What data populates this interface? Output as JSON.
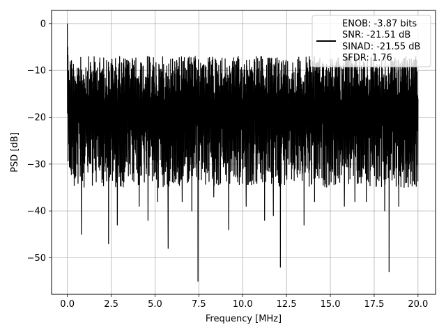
{
  "chart_data": {
    "type": "line",
    "title": "",
    "xlabel": "Frequency [MHz]",
    "ylabel": "PSD [dB]",
    "xlim": [
      -0.9,
      21.0
    ],
    "ylim": [
      -57.8,
      2.8
    ],
    "xticks": [
      0.0,
      2.5,
      5.0,
      7.5,
      10.0,
      12.5,
      15.0,
      17.5,
      20.0
    ],
    "xtick_labels": [
      "0.0",
      "2.5",
      "5.0",
      "7.5",
      "10.0",
      "12.5",
      "15.0",
      "17.5",
      "20.0"
    ],
    "yticks": [
      0,
      -10,
      -20,
      -30,
      -40,
      -50
    ],
    "ytick_labels": [
      "0",
      "−10",
      "−20",
      "−30",
      "−40",
      "−50"
    ],
    "grid": true,
    "legend_position": "top-right",
    "series_color": "#000000",
    "legend": [
      "ENOB: -3.87 bits",
      "SNR: -21.51 dB",
      "SINAD: -21.55 dB",
      "SFDR: 1.76"
    ],
    "series": [
      {
        "x": [
          0.0,
          0.02,
          0.05,
          0.1,
          0.15,
          0.2,
          0.3,
          0.4,
          0.55,
          0.6,
          0.8,
          2.35,
          2.85,
          4.1,
          4.6,
          5.15,
          5.75,
          6.55,
          7.1,
          7.45,
          8.35,
          9.2,
          10.2,
          11.25,
          11.75,
          12.15,
          13.5,
          14.1,
          15.8,
          16.4,
          17.05,
          18.1,
          18.35,
          18.9,
          20.0
        ],
        "y": [
          0.0,
          -5.0,
          -10.0,
          -20.0,
          -22.0,
          -30.0,
          -31.0,
          -25.0,
          -30.0,
          -15.0,
          -45.0,
          -47.0,
          -43.0,
          -39.0,
          -42.0,
          -38.0,
          -48.0,
          -38.0,
          -40.0,
          -55.0,
          -37.0,
          -44.0,
          -39.0,
          -42.0,
          -41.0,
          -52.0,
          -43.0,
          -38.0,
          -39.0,
          -38.0,
          -38.0,
          -40.0,
          -53.0,
          -39.0,
          -16.0
        ]
      }
    ]
  }
}
